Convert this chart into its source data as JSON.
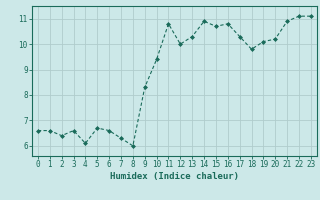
{
  "x": [
    0,
    1,
    2,
    3,
    4,
    5,
    6,
    7,
    8,
    9,
    10,
    11,
    12,
    13,
    14,
    15,
    16,
    17,
    18,
    19,
    20,
    21,
    22,
    23
  ],
  "y": [
    6.6,
    6.6,
    6.4,
    6.6,
    6.1,
    6.7,
    6.6,
    6.3,
    6.0,
    8.3,
    9.4,
    10.8,
    10.0,
    10.3,
    10.9,
    10.7,
    10.8,
    10.3,
    9.8,
    10.1,
    10.2,
    10.9,
    11.1,
    11.1
  ],
  "xlabel": "Humidex (Indice chaleur)",
  "xlim_min": -0.5,
  "xlim_max": 23.5,
  "ylim_min": 5.6,
  "ylim_max": 11.5,
  "yticks": [
    6,
    7,
    8,
    9,
    10,
    11
  ],
  "xticks": [
    0,
    1,
    2,
    3,
    4,
    5,
    6,
    7,
    8,
    9,
    10,
    11,
    12,
    13,
    14,
    15,
    16,
    17,
    18,
    19,
    20,
    21,
    22,
    23
  ],
  "line_color": "#1a6b5a",
  "marker_color": "#1a6b5a",
  "bg_color": "#cce8e8",
  "grid_color": "#b0cccc",
  "axis_color": "#1a6b5a",
  "text_color": "#1a6b5a",
  "label_fontsize": 6.5,
  "tick_fontsize": 5.5
}
